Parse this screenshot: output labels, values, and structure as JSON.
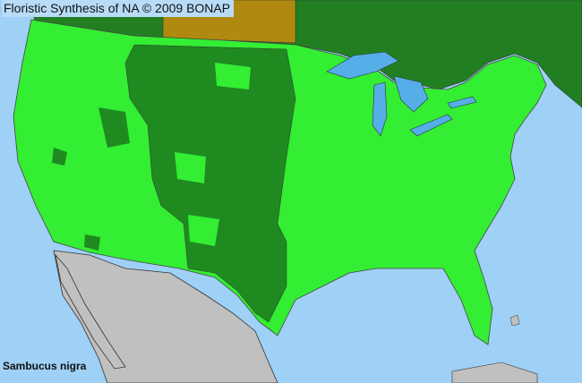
{
  "header": {
    "title": "Floristic Synthesis of NA © 2009 BONAP"
  },
  "map": {
    "species": "Sambucus nigra",
    "colors": {
      "ocean": "#9fd0f5",
      "present_county": "#33ee33",
      "present_state": "#1f8a1f",
      "canada_present": "#217f21",
      "canada_absent_native": "#b08a10",
      "mexico": "#c0c0c0",
      "lakes": "#55aee8",
      "borders": "#444444"
    }
  }
}
